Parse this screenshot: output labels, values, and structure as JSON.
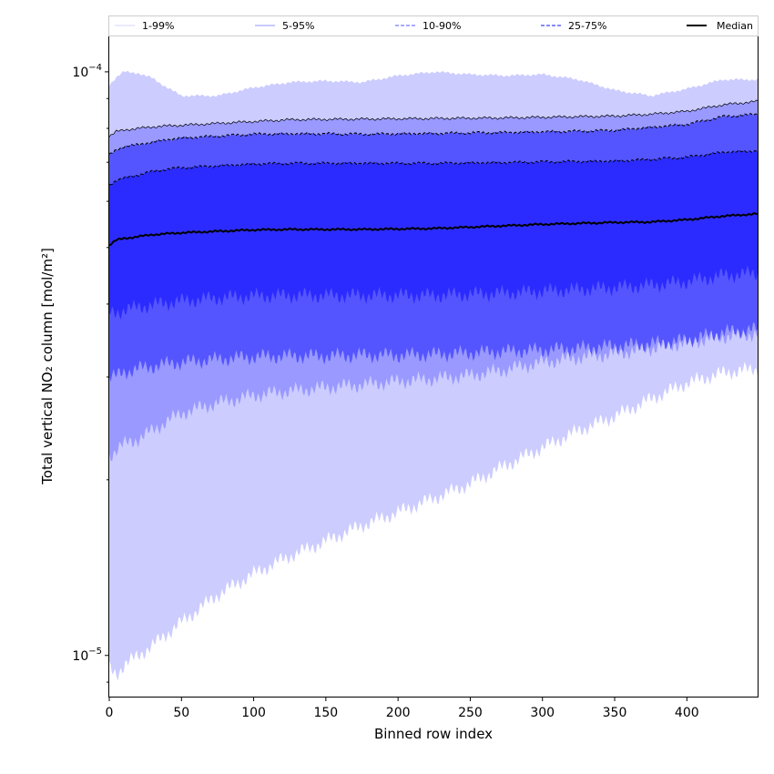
{
  "chart_data": {
    "type": "area",
    "xlabel": "Binned row index",
    "ylabel": "Total vertical NO₂ column [mol/m²]",
    "yscale": "log",
    "xlim": [
      0,
      449
    ],
    "ylim": [
      8.5e-06,
      0.000115
    ],
    "grid": false,
    "legend_position": "top, spanning full width above plot",
    "x_ticks": [
      0,
      50,
      100,
      150,
      200,
      250,
      300,
      350,
      400
    ],
    "x_tick_labels": [
      "0",
      "50",
      "100",
      "150",
      "200",
      "250",
      "300",
      "350",
      "400"
    ],
    "y_tick_labels": [
      {
        "base": "10",
        "exp": "−5",
        "value": 1e-05
      },
      {
        "base": "10",
        "exp": "−4",
        "value": 0.0001
      }
    ],
    "x": [
      0,
      5,
      10,
      20,
      30,
      40,
      50,
      75,
      100,
      125,
      150,
      175,
      200,
      225,
      250,
      275,
      300,
      325,
      350,
      375,
      400,
      425,
      449
    ],
    "series": [
      {
        "name": "1-99%",
        "color": "#ccccff",
        "line_style": "solid",
        "lower": [
          9.5e-06,
          9.3e-06,
          9.6e-06,
          1e-05,
          1.04e-05,
          1.09e-05,
          1.14e-05,
          1.27e-05,
          1.38e-05,
          1.48e-05,
          1.57e-05,
          1.67e-05,
          1.76e-05,
          1.86e-05,
          1.97e-05,
          2.12e-05,
          2.27e-05,
          2.43e-05,
          2.57e-05,
          2.75e-05,
          2.93e-05,
          3.05e-05,
          3.1e-05
        ],
        "upper": [
          9.5e-05,
          9.8e-05,
          0.0001,
          9.95e-05,
          9.75e-05,
          9.4e-05,
          9.1e-05,
          9.1e-05,
          9.4e-05,
          9.6e-05,
          9.65e-05,
          9.6e-05,
          9.85e-05,
          0.0001,
          9.9e-05,
          9.85e-05,
          9.9e-05,
          9.7e-05,
          9.3e-05,
          9.1e-05,
          9.35e-05,
          9.7e-05,
          9.7e-05
        ]
      },
      {
        "name": "5-95%",
        "color": "#9999ff",
        "line_style": "solid",
        "lower": [
          2.2e-05,
          2.25e-05,
          2.3e-05,
          2.35e-05,
          2.43e-05,
          2.52e-05,
          2.6e-05,
          2.71e-05,
          2.79e-05,
          2.84e-05,
          2.88e-05,
          2.91e-05,
          2.95e-05,
          2.98e-05,
          3.02e-05,
          3.09e-05,
          3.18e-05,
          3.24e-05,
          3.29e-05,
          3.36e-05,
          3.44e-05,
          3.52e-05,
          3.56e-05
        ],
        "upper": [
          7.75e-05,
          7.9e-05,
          7.95e-05,
          8e-05,
          8.05e-05,
          8.08e-05,
          8.1e-05,
          8.16e-05,
          8.22e-05,
          8.28e-05,
          8.29e-05,
          8.3e-05,
          8.31e-05,
          8.32e-05,
          8.33e-05,
          8.34e-05,
          8.36e-05,
          8.38e-05,
          8.4e-05,
          8.46e-05,
          8.56e-05,
          8.78e-05,
          8.9e-05
        ]
      },
      {
        "name": "10-90%",
        "color": "#5555ff",
        "line_style": "dashed",
        "lower": [
          3e-05,
          3.01e-05,
          3.06e-05,
          3.1e-05,
          3.13e-05,
          3.16e-05,
          3.18e-05,
          3.22e-05,
          3.25e-05,
          3.26e-05,
          3.26e-05,
          3.27e-05,
          3.27e-05,
          3.28e-05,
          3.3e-05,
          3.32e-05,
          3.34e-05,
          3.36e-05,
          3.39e-05,
          3.42e-05,
          3.47e-05,
          3.58e-05,
          3.62e-05
        ],
        "upper": [
          7.2e-05,
          7.35e-05,
          7.45e-05,
          7.5e-05,
          7.58e-05,
          7.65e-05,
          7.7e-05,
          7.76e-05,
          7.82e-05,
          7.83e-05,
          7.83e-05,
          7.82e-05,
          7.83e-05,
          7.84e-05,
          7.86e-05,
          7.87e-05,
          7.89e-05,
          7.91e-05,
          7.94e-05,
          8.03e-05,
          8.13e-05,
          8.38e-05,
          8.46e-05
        ]
      },
      {
        "name": "25-75%",
        "color": "#2b2bff",
        "line_style": "dashed",
        "lower": [
          3.85e-05,
          3.87e-05,
          3.91e-05,
          3.95e-05,
          3.99e-05,
          4.02e-05,
          4.05e-05,
          4.1e-05,
          4.13e-05,
          4.14e-05,
          4.14e-05,
          4.14e-05,
          4.14e-05,
          4.14e-05,
          4.16e-05,
          4.18e-05,
          4.21e-05,
          4.24e-05,
          4.27e-05,
          4.31e-05,
          4.37e-05,
          4.48e-05,
          4.52e-05
        ],
        "upper": [
          6.4e-05,
          6.52e-05,
          6.57e-05,
          6.66e-05,
          6.75e-05,
          6.81e-05,
          6.85e-05,
          6.9e-05,
          6.95e-05,
          6.97e-05,
          6.97e-05,
          6.97e-05,
          6.97e-05,
          6.97e-05,
          6.98e-05,
          6.99e-05,
          7.01e-05,
          7.02e-05,
          7.03e-05,
          7.08e-05,
          7.14e-05,
          7.28e-05,
          7.32e-05
        ]
      },
      {
        "name": "Median",
        "color": "#000000",
        "line_style": "solid",
        "values": [
          5.05e-05,
          5.15e-05,
          5.18e-05,
          5.22e-05,
          5.26e-05,
          5.28e-05,
          5.3e-05,
          5.33e-05,
          5.36e-05,
          5.37e-05,
          5.37e-05,
          5.37e-05,
          5.38e-05,
          5.39e-05,
          5.42e-05,
          5.45e-05,
          5.48e-05,
          5.5e-05,
          5.52e-05,
          5.53e-05,
          5.58e-05,
          5.66e-05,
          5.71e-05
        ]
      }
    ]
  }
}
